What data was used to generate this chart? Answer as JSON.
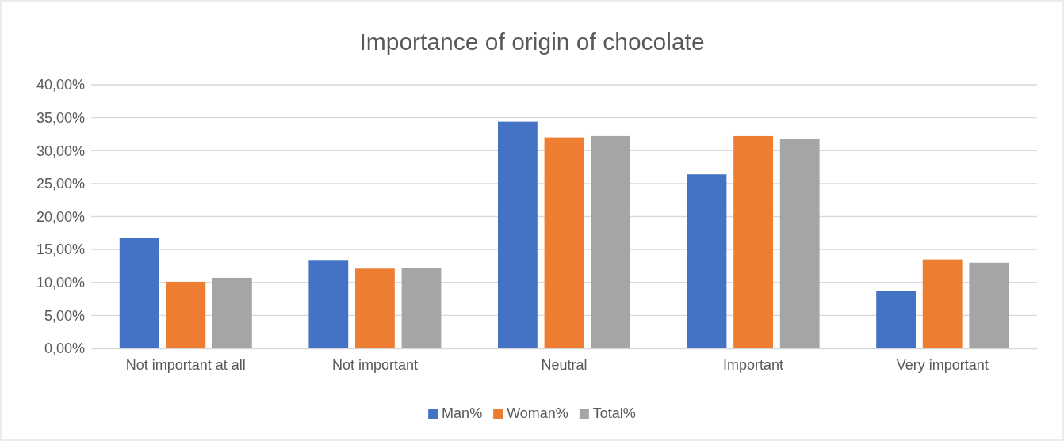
{
  "chart_data": {
    "type": "bar",
    "title": "Importance of origin of chocolate",
    "categories": [
      "Not important at all",
      "Not important",
      "Neutral",
      "Important",
      "Very important"
    ],
    "series": [
      {
        "name": "Man%",
        "color": "#4472c4",
        "values": [
          16.7,
          13.3,
          34.4,
          26.4,
          8.7
        ]
      },
      {
        "name": "Woman%",
        "color": "#ed7d31",
        "values": [
          10.1,
          12.1,
          32.0,
          32.2,
          13.5
        ]
      },
      {
        "name": "Total%",
        "color": "#a5a5a5",
        "values": [
          10.7,
          12.2,
          32.2,
          31.8,
          13.0
        ]
      }
    ],
    "ylim": [
      0,
      40
    ],
    "yticks": [
      {
        "value": 0,
        "label": "0,00%"
      },
      {
        "value": 5,
        "label": "5,00%"
      },
      {
        "value": 10,
        "label": "10,00%"
      },
      {
        "value": 15,
        "label": "15,00%"
      },
      {
        "value": 20,
        "label": "20,00%"
      },
      {
        "value": 25,
        "label": "25,00%"
      },
      {
        "value": 30,
        "label": "30,00%"
      },
      {
        "value": 35,
        "label": "35,00%"
      },
      {
        "value": 40,
        "label": "40,00%"
      }
    ],
    "grid": "y",
    "legend": "bottom"
  }
}
